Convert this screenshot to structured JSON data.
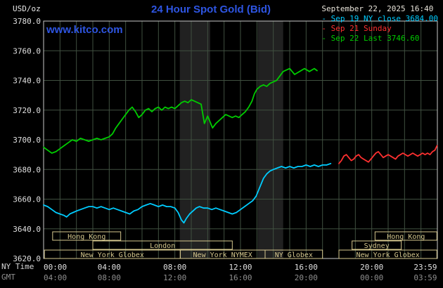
{
  "header": {
    "title": "24 Hour Spot Gold (Bid)",
    "unit_label": "USD/oz",
    "datetime": "September 22, 2025 16:40",
    "watermark": "www.kitco.com"
  },
  "legend": [
    {
      "label": "Sep 19 NY close 3684.00",
      "color": "#00ccff"
    },
    {
      "label": "Sep 21 Sunday",
      "color": "#ff3030"
    },
    {
      "label": "Sep 22 Last 3746.60",
      "color": "#00cc00"
    }
  ],
  "colors": {
    "background": "#000000",
    "kitco_blue": "#2e55e2",
    "datetime_text": "#e8e4da",
    "axis_text": "#e0e0e0",
    "gmt_text": "#8f8f8f",
    "grid": "#405040",
    "frame": "#c8c8c8",
    "session": "#d6c88e",
    "band": "#212121"
  },
  "axes": {
    "ny_time_label": "NY Time",
    "gmt_label": "GMT",
    "x_ticks": [
      {
        "hour": 0,
        "ny": "00:00",
        "gmt": "04:00"
      },
      {
        "hour": 4,
        "ny": "04:00",
        "gmt": "08:00"
      },
      {
        "hour": 8,
        "ny": "08:00",
        "gmt": "12:00"
      },
      {
        "hour": 12,
        "ny": "12:00",
        "gmt": "16:00"
      },
      {
        "hour": 16,
        "ny": "16:00",
        "gmt": "20:00"
      },
      {
        "hour": 20,
        "ny": "20:00",
        "gmt": "00:00"
      },
      {
        "hour": 23.98,
        "ny": "23:59",
        "gmt": "03:59"
      }
    ],
    "y_ticks": [
      3780,
      3760,
      3740,
      3720,
      3700,
      3680,
      3660,
      3640,
      3620
    ]
  },
  "chart_data": {
    "type": "line",
    "title": "24 Hour Spot Gold (Bid)",
    "x_unit": "hours NY time",
    "y_unit": "USD/oz",
    "xlim": [
      0,
      24
    ],
    "ylim": [
      3620,
      3780
    ],
    "grid": {
      "x_step_hours": 1,
      "y_step": 20
    },
    "bands": [
      {
        "start": 8.3,
        "end": 10.15
      },
      {
        "start": 13.05,
        "end": 14.6
      }
    ],
    "series": [
      {
        "id": "sep19-ny-close",
        "name": "Sep 19 NY close 3684.00",
        "color": "#00ccff",
        "points": [
          [
            0,
            3656
          ],
          [
            0.25,
            3655
          ],
          [
            0.5,
            3653
          ],
          [
            0.75,
            3651
          ],
          [
            1,
            3650
          ],
          [
            1.25,
            3649
          ],
          [
            1.4,
            3648
          ],
          [
            1.6,
            3650
          ],
          [
            1.8,
            3651
          ],
          [
            2,
            3652
          ],
          [
            2.25,
            3653
          ],
          [
            2.5,
            3654
          ],
          [
            2.75,
            3655
          ],
          [
            3,
            3655
          ],
          [
            3.25,
            3654
          ],
          [
            3.5,
            3655
          ],
          [
            3.75,
            3654
          ],
          [
            4,
            3653
          ],
          [
            4.25,
            3654
          ],
          [
            4.5,
            3653
          ],
          [
            4.75,
            3652
          ],
          [
            5,
            3651
          ],
          [
            5.25,
            3650
          ],
          [
            5.5,
            3652
          ],
          [
            5.75,
            3653
          ],
          [
            6,
            3655
          ],
          [
            6.25,
            3656
          ],
          [
            6.5,
            3657
          ],
          [
            6.75,
            3656
          ],
          [
            7,
            3655
          ],
          [
            7.25,
            3656
          ],
          [
            7.5,
            3655
          ],
          [
            7.75,
            3655
          ],
          [
            8,
            3654
          ],
          [
            8.2,
            3651
          ],
          [
            8.4,
            3646
          ],
          [
            8.55,
            3644
          ],
          [
            8.7,
            3647
          ],
          [
            8.9,
            3650
          ],
          [
            9.1,
            3652
          ],
          [
            9.3,
            3654
          ],
          [
            9.5,
            3655
          ],
          [
            9.75,
            3654
          ],
          [
            10,
            3654
          ],
          [
            10.25,
            3653
          ],
          [
            10.5,
            3654
          ],
          [
            10.75,
            3653
          ],
          [
            11,
            3652
          ],
          [
            11.25,
            3651
          ],
          [
            11.5,
            3650
          ],
          [
            11.75,
            3651
          ],
          [
            12,
            3653
          ],
          [
            12.25,
            3655
          ],
          [
            12.5,
            3657
          ],
          [
            12.75,
            3659
          ],
          [
            12.95,
            3662
          ],
          [
            13.1,
            3666
          ],
          [
            13.25,
            3670
          ],
          [
            13.4,
            3674
          ],
          [
            13.6,
            3677
          ],
          [
            13.8,
            3679
          ],
          [
            14,
            3680
          ],
          [
            14.25,
            3681
          ],
          [
            14.5,
            3682
          ],
          [
            14.75,
            3681
          ],
          [
            15,
            3682
          ],
          [
            15.25,
            3681
          ],
          [
            15.5,
            3682
          ],
          [
            15.75,
            3682
          ],
          [
            16,
            3683
          ],
          [
            16.25,
            3682
          ],
          [
            16.5,
            3683
          ],
          [
            16.75,
            3682
          ],
          [
            17,
            3683
          ],
          [
            17.25,
            3683
          ],
          [
            17.5,
            3684
          ]
        ]
      },
      {
        "id": "sep21-sunday",
        "name": "Sep 21 Sunday",
        "color": "#ff3030",
        "points": [
          [
            18,
            3684
          ],
          [
            18.15,
            3686
          ],
          [
            18.3,
            3689
          ],
          [
            18.45,
            3690
          ],
          [
            18.6,
            3688
          ],
          [
            18.75,
            3686
          ],
          [
            18.9,
            3687
          ],
          [
            19.05,
            3689
          ],
          [
            19.2,
            3690
          ],
          [
            19.35,
            3688
          ],
          [
            19.5,
            3687
          ],
          [
            19.65,
            3686
          ],
          [
            19.8,
            3685
          ],
          [
            19.95,
            3687
          ],
          [
            20.1,
            3689
          ],
          [
            20.25,
            3691
          ],
          [
            20.4,
            3692
          ],
          [
            20.55,
            3690
          ],
          [
            20.7,
            3688
          ],
          [
            20.85,
            3689
          ],
          [
            21,
            3690
          ],
          [
            21.15,
            3689
          ],
          [
            21.3,
            3688
          ],
          [
            21.45,
            3687
          ],
          [
            21.6,
            3689
          ],
          [
            21.75,
            3690
          ],
          [
            21.9,
            3691
          ],
          [
            22.05,
            3690
          ],
          [
            22.2,
            3689
          ],
          [
            22.35,
            3690
          ],
          [
            22.5,
            3691
          ],
          [
            22.65,
            3690
          ],
          [
            22.8,
            3689
          ],
          [
            22.95,
            3690
          ],
          [
            23.1,
            3691
          ],
          [
            23.25,
            3690
          ],
          [
            23.4,
            3691
          ],
          [
            23.55,
            3690
          ],
          [
            23.7,
            3692
          ],
          [
            23.85,
            3693
          ],
          [
            23.98,
            3696
          ]
        ]
      },
      {
        "id": "sep22-today",
        "name": "Sep 22 Last 3746.60",
        "color": "#00cc00",
        "points": [
          [
            0,
            3695
          ],
          [
            0.25,
            3693
          ],
          [
            0.5,
            3691
          ],
          [
            0.75,
            3692
          ],
          [
            1,
            3694
          ],
          [
            1.25,
            3696
          ],
          [
            1.5,
            3698
          ],
          [
            1.75,
            3700
          ],
          [
            2,
            3699
          ],
          [
            2.25,
            3701
          ],
          [
            2.5,
            3700
          ],
          [
            2.75,
            3699
          ],
          [
            3,
            3700
          ],
          [
            3.25,
            3701
          ],
          [
            3.5,
            3700
          ],
          [
            3.75,
            3701
          ],
          [
            4,
            3702
          ],
          [
            4.2,
            3704
          ],
          [
            4.4,
            3708
          ],
          [
            4.6,
            3711
          ],
          [
            4.8,
            3714
          ],
          [
            5,
            3717
          ],
          [
            5.2,
            3720
          ],
          [
            5.4,
            3722
          ],
          [
            5.6,
            3719
          ],
          [
            5.8,
            3715
          ],
          [
            6,
            3717
          ],
          [
            6.2,
            3720
          ],
          [
            6.4,
            3721
          ],
          [
            6.6,
            3719
          ],
          [
            6.8,
            3721
          ],
          [
            7,
            3722
          ],
          [
            7.2,
            3720
          ],
          [
            7.4,
            3722
          ],
          [
            7.6,
            3721
          ],
          [
            7.8,
            3722
          ],
          [
            8,
            3721
          ],
          [
            8.2,
            3723
          ],
          [
            8.4,
            3725
          ],
          [
            8.6,
            3726
          ],
          [
            8.8,
            3725
          ],
          [
            9,
            3727
          ],
          [
            9.2,
            3726
          ],
          [
            9.4,
            3725
          ],
          [
            9.6,
            3724
          ],
          [
            9.8,
            3711
          ],
          [
            10,
            3716
          ],
          [
            10.15,
            3712
          ],
          [
            10.3,
            3708
          ],
          [
            10.5,
            3711
          ],
          [
            10.7,
            3713
          ],
          [
            10.9,
            3715
          ],
          [
            11.1,
            3717
          ],
          [
            11.3,
            3716
          ],
          [
            11.5,
            3715
          ],
          [
            11.7,
            3716
          ],
          [
            11.9,
            3715
          ],
          [
            12.1,
            3717
          ],
          [
            12.3,
            3719
          ],
          [
            12.5,
            3722
          ],
          [
            12.7,
            3726
          ],
          [
            12.85,
            3731
          ],
          [
            13,
            3734
          ],
          [
            13.2,
            3736
          ],
          [
            13.4,
            3737
          ],
          [
            13.6,
            3736
          ],
          [
            13.8,
            3738
          ],
          [
            14,
            3739
          ],
          [
            14.2,
            3740
          ],
          [
            14.4,
            3743
          ],
          [
            14.6,
            3746
          ],
          [
            14.8,
            3747
          ],
          [
            15,
            3748
          ],
          [
            15.15,
            3746
          ],
          [
            15.3,
            3744
          ],
          [
            15.45,
            3745
          ],
          [
            15.6,
            3746
          ],
          [
            15.75,
            3747
          ],
          [
            15.9,
            3748
          ],
          [
            16.05,
            3747
          ],
          [
            16.2,
            3746
          ],
          [
            16.35,
            3747
          ],
          [
            16.5,
            3748
          ],
          [
            16.67,
            3746.6
          ]
        ]
      }
    ],
    "sessions": [
      {
        "label": "Hong Kong",
        "row": 0,
        "start": 0.55,
        "end": 4.7
      },
      {
        "label": "Hong Kong",
        "row": 0,
        "start": 20.2,
        "end": 23.97
      },
      {
        "label": "London",
        "row": 1,
        "start": 3.0,
        "end": 11.5
      },
      {
        "label": "Sydney",
        "row": 1,
        "start": 18.8,
        "end": 21.8
      },
      {
        "label": "New York Globex",
        "row": 2,
        "start": 0.05,
        "end": 8.33
      },
      {
        "label": "New York NYMEX",
        "row": 2,
        "start": 8.33,
        "end": 13.5
      },
      {
        "label": "NY Globex",
        "row": 2,
        "start": 13.5,
        "end": 17.0
      },
      {
        "label": "New York Globex",
        "row": 2,
        "start": 18.0,
        "end": 23.97
      }
    ]
  }
}
